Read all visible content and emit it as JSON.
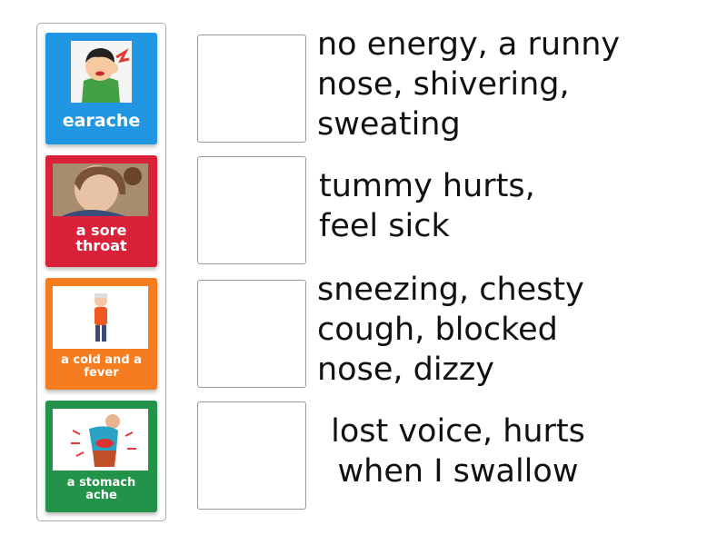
{
  "cards": [
    {
      "label": "earache",
      "color": "#2196e3",
      "image": "boy-holding-ear-illustration"
    },
    {
      "label": "a sore throat",
      "color": "#d9213a",
      "image": "girl-holding-throat-photo"
    },
    {
      "label": "a cold and a fever",
      "color": "#f57c1f",
      "image": "sick-child-with-ice-pack-illustration"
    },
    {
      "label": "a stomach ache",
      "color": "#24934a",
      "image": "man-holding-stomach-illustration"
    }
  ],
  "clues": [
    "no energy, a runny nose, shivering, sweating",
    "tummy hurts, feel sick",
    "sneezing, chesty cough, blocked nose, dizzy",
    "lost voice, hurts when I swallow"
  ]
}
